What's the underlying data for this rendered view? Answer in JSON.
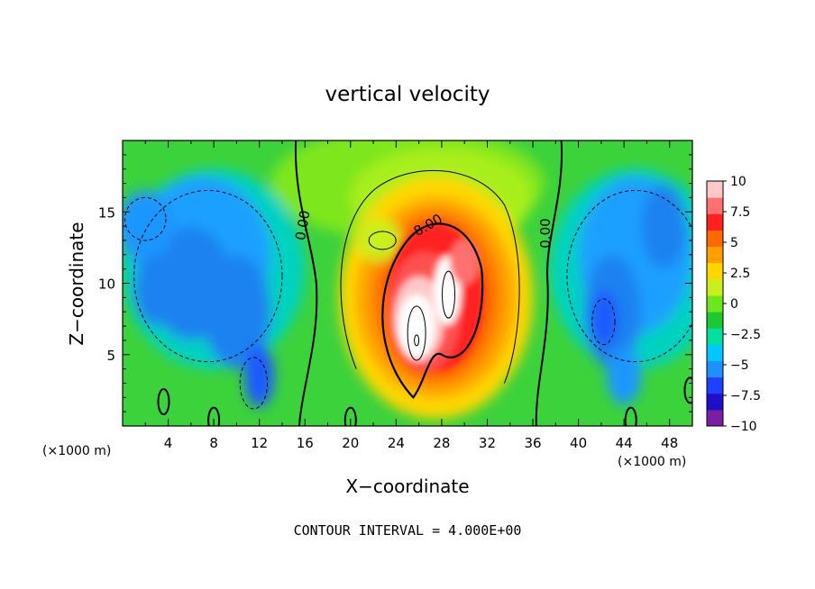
{
  "chart_data": {
    "type": "heatmap",
    "title": "vertical velocity",
    "xlabel": "X−coordinate",
    "ylabel": "Z−coordinate",
    "x_unit_left": "(×1000 m)",
    "x_unit_right": "(×1000 m)",
    "xlim": [
      0,
      50
    ],
    "ylim": [
      0,
      20
    ],
    "x_ticks": [
      "4",
      "8",
      "12",
      "16",
      "20",
      "24",
      "28",
      "32",
      "36",
      "40",
      "44",
      "48"
    ],
    "y_ticks": [
      "5",
      "10",
      "15"
    ],
    "footer": "CONTOUR INTERVAL = 4.000E+00",
    "colorbar": {
      "range": [
        -10,
        10
      ],
      "labels": [
        "10",
        "7.5",
        "5",
        "2.5",
        "0",
        "−2.5",
        "−5",
        "−7.5",
        "−10"
      ],
      "colors": [
        "#7a1fa2",
        "#1f10c8",
        "#2040ff",
        "#1e90ff",
        "#00c8ff",
        "#00e0a0",
        "#1ec832",
        "#6ee61e",
        "#c8f01e",
        "#ffd700",
        "#ffa000",
        "#ff6a00",
        "#ff2020",
        "#ff7070",
        "#ffc8c8"
      ]
    },
    "contour_labels": [
      "0.00",
      "8.00",
      "0.00"
    ],
    "features": [
      {
        "type": "updraft",
        "x": 27,
        "z": 9,
        "peak": 14
      },
      {
        "type": "downdraft",
        "x": 8,
        "z": 10,
        "value": -6
      },
      {
        "type": "downdraft",
        "x": 46,
        "z": 10,
        "value": -6
      }
    ]
  }
}
